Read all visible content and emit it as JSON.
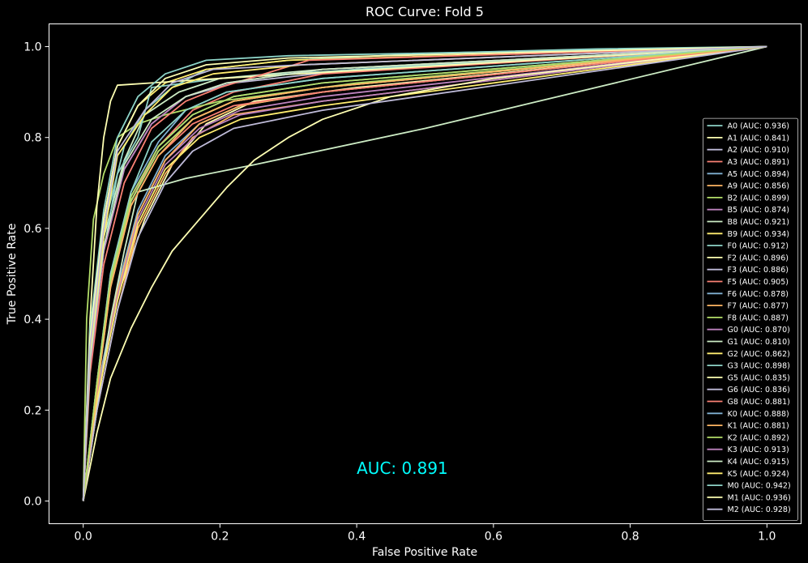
{
  "chart_data": {
    "type": "line",
    "title": "ROC Curve: Fold 5",
    "xlabel": "False Positive Rate",
    "ylabel": "True Positive Rate",
    "xlim": [
      -0.05,
      1.05
    ],
    "ylim": [
      -0.05,
      1.05
    ],
    "xticks": [
      "0.0",
      "0.2",
      "0.4",
      "0.6",
      "0.8",
      "1.0"
    ],
    "yticks": [
      "0.0",
      "0.2",
      "0.4",
      "0.6",
      "0.8",
      "1.0"
    ],
    "grid": false,
    "legend_position": "lower-right",
    "annotation": {
      "text": "AUC: 0.891",
      "x": 0.4,
      "y": 0.06,
      "color": "#00ffff"
    },
    "series": [
      {
        "name": "A0 (AUC: 0.936)",
        "color": "#8dd3c7",
        "x": [
          0,
          0.01,
          0.03,
          0.06,
          0.09,
          0.13,
          0.18,
          0.3,
          0.5,
          0.75,
          1.0
        ],
        "y": [
          0,
          0.35,
          0.6,
          0.78,
          0.86,
          0.91,
          0.95,
          0.97,
          0.985,
          0.995,
          1.0
        ]
      },
      {
        "name": "A1 (AUC: 0.841)",
        "color": "#feffb3",
        "x": [
          0,
          0.02,
          0.05,
          0.09,
          0.13,
          0.18,
          0.25,
          0.4,
          1.0
        ],
        "y": [
          0,
          0.22,
          0.45,
          0.62,
          0.74,
          0.83,
          0.88,
          0.91,
          1.0
        ]
      },
      {
        "name": "A2 (AUC: 0.910)",
        "color": "#bfbbd9",
        "x": [
          0,
          0.01,
          0.03,
          0.06,
          0.1,
          0.15,
          0.22,
          0.4,
          1.0
        ],
        "y": [
          0,
          0.3,
          0.55,
          0.73,
          0.83,
          0.89,
          0.92,
          0.95,
          1.0
        ]
      },
      {
        "name": "A3 (AUC: 0.891)",
        "color": "#fa8174",
        "x": [
          0,
          0.02,
          0.04,
          0.07,
          0.11,
          0.16,
          0.22,
          0.35,
          1.0
        ],
        "y": [
          0,
          0.25,
          0.48,
          0.66,
          0.78,
          0.86,
          0.9,
          0.94,
          1.0
        ]
      },
      {
        "name": "A5 (AUC: 0.894)",
        "color": "#81b1d2",
        "x": [
          0,
          0.02,
          0.04,
          0.07,
          0.11,
          0.15,
          0.21,
          0.35,
          1.0
        ],
        "y": [
          0,
          0.26,
          0.5,
          0.68,
          0.79,
          0.86,
          0.9,
          0.93,
          1.0
        ]
      },
      {
        "name": "A9 (AUC: 0.856)",
        "color": "#fdb462",
        "x": [
          0,
          0.02,
          0.05,
          0.08,
          0.12,
          0.16,
          0.22,
          0.35,
          1.0
        ],
        "y": [
          0,
          0.2,
          0.42,
          0.6,
          0.72,
          0.8,
          0.85,
          0.88,
          1.0
        ]
      },
      {
        "name": "B2 (AUC: 0.899)",
        "color": "#b3de69",
        "x": [
          0,
          0.005,
          0.015,
          0.03,
          0.05,
          0.08,
          0.12,
          0.2,
          0.4,
          1.0
        ],
        "y": [
          0,
          0.4,
          0.62,
          0.72,
          0.8,
          0.83,
          0.85,
          0.88,
          0.92,
          1.0
        ]
      },
      {
        "name": "B5 (AUC: 0.874)",
        "color": "#bc82bd",
        "x": [
          0,
          0.02,
          0.05,
          0.08,
          0.12,
          0.17,
          0.23,
          0.35,
          1.0
        ],
        "y": [
          0,
          0.24,
          0.46,
          0.63,
          0.75,
          0.82,
          0.86,
          0.89,
          1.0
        ]
      },
      {
        "name": "B8 (AUC: 0.921)",
        "color": "#ccebc4",
        "x": [
          0,
          0.01,
          0.03,
          0.06,
          0.09,
          0.14,
          0.2,
          0.35,
          1.0
        ],
        "y": [
          0,
          0.32,
          0.58,
          0.75,
          0.85,
          0.9,
          0.93,
          0.95,
          1.0
        ]
      },
      {
        "name": "B9 (AUC: 0.934)",
        "color": "#ffed6f",
        "x": [
          0,
          0.01,
          0.03,
          0.05,
          0.08,
          0.12,
          0.18,
          0.3,
          1.0
        ],
        "y": [
          0,
          0.35,
          0.62,
          0.78,
          0.87,
          0.92,
          0.95,
          0.97,
          1.0
        ]
      },
      {
        "name": "F0 (AUC: 0.912)",
        "color": "#8dd3c7",
        "x": [
          0,
          0.01,
          0.03,
          0.05,
          0.08,
          0.1,
          0.2,
          0.4,
          1.0
        ],
        "y": [
          0,
          0.3,
          0.55,
          0.72,
          0.8,
          0.91,
          0.93,
          0.95,
          1.0
        ]
      },
      {
        "name": "F2 (AUC: 0.896)",
        "color": "#feffb3",
        "x": [
          0,
          0.01,
          0.02,
          0.03,
          0.04,
          0.05,
          0.1,
          0.2,
          1.0
        ],
        "y": [
          0,
          0.4,
          0.65,
          0.8,
          0.88,
          0.915,
          0.92,
          0.93,
          1.0
        ]
      },
      {
        "name": "F3 (AUC: 0.886)",
        "color": "#bfbbd9",
        "x": [
          0,
          0.02,
          0.04,
          0.07,
          0.11,
          0.16,
          0.22,
          0.35,
          1.0
        ],
        "y": [
          0,
          0.25,
          0.48,
          0.66,
          0.77,
          0.84,
          0.88,
          0.91,
          1.0
        ]
      },
      {
        "name": "F5 (AUC: 0.905)",
        "color": "#fa8174",
        "x": [
          0,
          0.01,
          0.03,
          0.06,
          0.1,
          0.15,
          0.2,
          0.33,
          1.0
        ],
        "y": [
          0,
          0.28,
          0.52,
          0.7,
          0.82,
          0.88,
          0.91,
          0.97,
          1.0
        ]
      },
      {
        "name": "F6 (AUC: 0.878)",
        "color": "#81b1d2",
        "x": [
          0,
          0.02,
          0.05,
          0.08,
          0.12,
          0.17,
          0.23,
          0.35,
          1.0
        ],
        "y": [
          0,
          0.24,
          0.47,
          0.64,
          0.76,
          0.83,
          0.87,
          0.9,
          1.0
        ]
      },
      {
        "name": "F7 (AUC: 0.877)",
        "color": "#fdb462",
        "x": [
          0,
          0.02,
          0.05,
          0.08,
          0.12,
          0.17,
          0.23,
          0.35,
          1.0
        ],
        "y": [
          0,
          0.23,
          0.46,
          0.63,
          0.75,
          0.83,
          0.87,
          0.9,
          1.0
        ]
      },
      {
        "name": "F8 (AUC: 0.887)",
        "color": "#b3de69",
        "x": [
          0,
          0.02,
          0.04,
          0.07,
          0.11,
          0.16,
          0.22,
          0.35,
          1.0
        ],
        "y": [
          0,
          0.25,
          0.48,
          0.66,
          0.77,
          0.84,
          0.88,
          0.91,
          1.0
        ]
      },
      {
        "name": "G0 (AUC: 0.870)",
        "color": "#bc82bd",
        "x": [
          0,
          0.02,
          0.05,
          0.08,
          0.12,
          0.17,
          0.23,
          0.35,
          1.0
        ],
        "y": [
          0,
          0.23,
          0.45,
          0.62,
          0.74,
          0.81,
          0.85,
          0.88,
          1.0
        ]
      },
      {
        "name": "G1 (AUC: 0.810)",
        "color": "#ccebc4",
        "x": [
          0,
          0.02,
          0.04,
          0.06,
          0.08,
          0.15,
          0.25,
          0.5,
          1.0
        ],
        "y": [
          0,
          0.2,
          0.4,
          0.55,
          0.68,
          0.71,
          0.74,
          0.82,
          1.0
        ]
      },
      {
        "name": "G2 (AUC: 0.862)",
        "color": "#ffed6f",
        "x": [
          0,
          0.02,
          0.05,
          0.08,
          0.12,
          0.17,
          0.23,
          0.35,
          1.0
        ],
        "y": [
          0,
          0.22,
          0.44,
          0.61,
          0.73,
          0.8,
          0.84,
          0.87,
          1.0
        ]
      },
      {
        "name": "G3 (AUC: 0.898)",
        "color": "#8dd3c7",
        "x": [
          0,
          0.02,
          0.04,
          0.07,
          0.1,
          0.15,
          0.21,
          0.35,
          1.0
        ],
        "y": [
          0,
          0.26,
          0.5,
          0.68,
          0.79,
          0.86,
          0.9,
          0.93,
          1.0
        ]
      },
      {
        "name": "G5 (AUC: 0.835)",
        "color": "#feffb3",
        "x": [
          0,
          0.02,
          0.04,
          0.07,
          0.1,
          0.13,
          0.17,
          0.21,
          0.25,
          0.3,
          0.35,
          0.45,
          0.6,
          1.0
        ],
        "y": [
          0,
          0.15,
          0.27,
          0.38,
          0.47,
          0.55,
          0.62,
          0.69,
          0.75,
          0.8,
          0.84,
          0.89,
          0.93,
          1.0
        ]
      },
      {
        "name": "G6 (AUC: 0.836)",
        "color": "#bfbbd9",
        "x": [
          0,
          0.02,
          0.05,
          0.08,
          0.12,
          0.16,
          0.22,
          0.35,
          1.0
        ],
        "y": [
          0,
          0.2,
          0.42,
          0.58,
          0.7,
          0.77,
          0.82,
          0.86,
          1.0
        ]
      },
      {
        "name": "G8 (AUC: 0.881)",
        "color": "#fa8174",
        "x": [
          0,
          0.02,
          0.04,
          0.07,
          0.11,
          0.16,
          0.22,
          0.35,
          1.0
        ],
        "y": [
          0,
          0.24,
          0.47,
          0.65,
          0.76,
          0.83,
          0.87,
          0.9,
          1.0
        ]
      },
      {
        "name": "K0 (AUC: 0.888)",
        "color": "#81b1d2",
        "x": [
          0,
          0.02,
          0.04,
          0.07,
          0.11,
          0.16,
          0.22,
          0.35,
          1.0
        ],
        "y": [
          0,
          0.25,
          0.49,
          0.67,
          0.78,
          0.85,
          0.89,
          0.92,
          1.0
        ]
      },
      {
        "name": "K1 (AUC: 0.881)",
        "color": "#fdb462",
        "x": [
          0,
          0.02,
          0.04,
          0.07,
          0.11,
          0.16,
          0.22,
          0.35,
          1.0
        ],
        "y": [
          0,
          0.24,
          0.47,
          0.65,
          0.76,
          0.84,
          0.88,
          0.91,
          1.0
        ]
      },
      {
        "name": "K2 (AUC: 0.892)",
        "color": "#b3de69",
        "x": [
          0,
          0.02,
          0.04,
          0.07,
          0.11,
          0.16,
          0.22,
          0.35,
          1.0
        ],
        "y": [
          0,
          0.26,
          0.49,
          0.67,
          0.78,
          0.85,
          0.89,
          0.92,
          1.0
        ]
      },
      {
        "name": "K3 (AUC: 0.913)",
        "color": "#bc82bd",
        "x": [
          0,
          0.01,
          0.03,
          0.06,
          0.1,
          0.15,
          0.21,
          0.35,
          1.0
        ],
        "y": [
          0,
          0.3,
          0.55,
          0.73,
          0.83,
          0.89,
          0.92,
          0.95,
          1.0
        ]
      },
      {
        "name": "K4 (AUC: 0.915)",
        "color": "#ccebc4",
        "x": [
          0,
          0.01,
          0.03,
          0.06,
          0.1,
          0.15,
          0.21,
          0.35,
          1.0
        ],
        "y": [
          0,
          0.31,
          0.56,
          0.74,
          0.84,
          0.89,
          0.92,
          0.95,
          1.0
        ]
      },
      {
        "name": "K5 (AUC: 0.924)",
        "color": "#ffed6f",
        "x": [
          0,
          0.01,
          0.03,
          0.05,
          0.09,
          0.13,
          0.19,
          0.32,
          1.0
        ],
        "y": [
          0,
          0.33,
          0.58,
          0.76,
          0.85,
          0.91,
          0.94,
          0.96,
          1.0
        ]
      },
      {
        "name": "M0 (AUC: 0.942)",
        "color": "#8dd3c7",
        "x": [
          0,
          0.01,
          0.03,
          0.05,
          0.08,
          0.12,
          0.18,
          0.3,
          1.0
        ],
        "y": [
          0,
          0.38,
          0.64,
          0.8,
          0.89,
          0.94,
          0.97,
          0.98,
          1.0
        ]
      },
      {
        "name": "M1 (AUC: 0.936)",
        "color": "#feffb3",
        "x": [
          0,
          0.01,
          0.03,
          0.05,
          0.08,
          0.12,
          0.18,
          0.3,
          1.0
        ],
        "y": [
          0,
          0.36,
          0.62,
          0.78,
          0.87,
          0.93,
          0.96,
          0.975,
          1.0
        ]
      },
      {
        "name": "M2 (AUC: 0.928)",
        "color": "#bfbbd9",
        "x": [
          0,
          0.01,
          0.03,
          0.05,
          0.09,
          0.13,
          0.19,
          0.32,
          1.0
        ],
        "y": [
          0,
          0.34,
          0.6,
          0.77,
          0.86,
          0.92,
          0.95,
          0.96,
          1.0
        ]
      }
    ]
  }
}
